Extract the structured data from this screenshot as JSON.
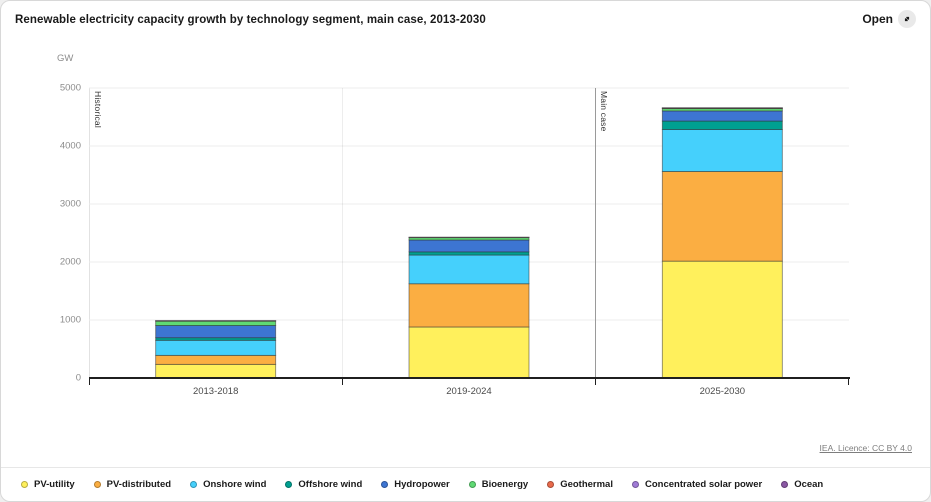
{
  "header": {
    "title": "Renewable electricity capacity growth by technology segment, main case, 2013-2030",
    "open_label": "Open"
  },
  "axis": {
    "unit": "GW",
    "yticks": [
      0,
      1000,
      2000,
      3000,
      4000,
      5000
    ]
  },
  "annotations": {
    "historical": "Historical",
    "main_case": "Main case",
    "license": "IEA. Licence: CC BY 4.0"
  },
  "chart_data": {
    "type": "bar",
    "stacked": true,
    "title": "Renewable electricity capacity growth by technology segment, main case, 2013-2030",
    "xlabel": "",
    "ylabel": "GW",
    "ylim": [
      0,
      5000
    ],
    "grid": true,
    "legend_position": "bottom",
    "categories": [
      "2013-2018",
      "2019-2024",
      "2025-2030"
    ],
    "region_annotations": [
      {
        "label": "Historical",
        "covers": [
          "2013-2018",
          "2019-2024"
        ]
      },
      {
        "label": "Main case",
        "covers": [
          "2025-2030"
        ]
      }
    ],
    "series": [
      {
        "name": "PV-utility",
        "color": "#FFF05C",
        "values": [
          235,
          880,
          2015
        ]
      },
      {
        "name": "PV-distributed",
        "color": "#FBAE42",
        "values": [
          155,
          745,
          1545
        ]
      },
      {
        "name": "Onshore wind",
        "color": "#45D0FC",
        "values": [
          260,
          495,
          725
        ]
      },
      {
        "name": "Offshore wind",
        "color": "#00A091",
        "values": [
          45,
          55,
          145
        ]
      },
      {
        "name": "Hydropower",
        "color": "#3D75D2",
        "values": [
          210,
          205,
          175
        ]
      },
      {
        "name": "Bioenergy",
        "color": "#5FD973",
        "values": [
          75,
          40,
          40
        ]
      },
      {
        "name": "Geothermal",
        "color": "#E96A4B",
        "values": [
          6,
          5,
          8
        ]
      },
      {
        "name": "Concentrated solar power",
        "color": "#A07BD6",
        "values": [
          4,
          3,
          4
        ]
      },
      {
        "name": "Ocean",
        "color": "#8A57A3",
        "values": [
          0,
          0,
          1
        ]
      }
    ],
    "totals": [
      990,
      2428,
      4658
    ]
  }
}
